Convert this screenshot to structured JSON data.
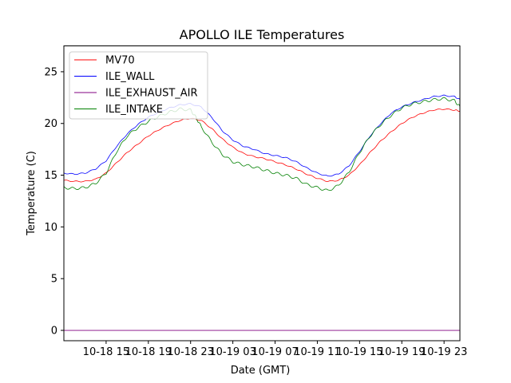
{
  "chart_data": {
    "type": "line",
    "title": "APOLLO ILE Temperatures",
    "xlabel": "Date (GMT)",
    "ylabel": "Temperature (C)",
    "x_unit": "hours since 10-18 11:00 GMT",
    "xlim": [
      0,
      37.5
    ],
    "ylim": [
      -1.0,
      27.5
    ],
    "x_ticks": [
      {
        "value": 4,
        "label": "10-18 15"
      },
      {
        "value": 8,
        "label": "10-18 19"
      },
      {
        "value": 12,
        "label": "10-18 23"
      },
      {
        "value": 16,
        "label": "10-19 03"
      },
      {
        "value": 20,
        "label": "10-19 07"
      },
      {
        "value": 24,
        "label": "10-19 11"
      },
      {
        "value": 28,
        "label": "10-19 15"
      },
      {
        "value": 32,
        "label": "10-19 19"
      },
      {
        "value": 36,
        "label": "10-19 23"
      }
    ],
    "y_ticks": [
      {
        "value": 0,
        "label": "0"
      },
      {
        "value": 5,
        "label": "5"
      },
      {
        "value": 10,
        "label": "10"
      },
      {
        "value": 15,
        "label": "15"
      },
      {
        "value": 20,
        "label": "20"
      },
      {
        "value": 25,
        "label": "25"
      }
    ],
    "legend_position": "top-left",
    "series": [
      {
        "name": "MV70",
        "color": "#ff0000",
        "points": [
          [
            0,
            14.5
          ],
          [
            1,
            14.4
          ],
          [
            2,
            14.4
          ],
          [
            3,
            14.6
          ],
          [
            4,
            15.2
          ],
          [
            5,
            16.2
          ],
          [
            6,
            17.2
          ],
          [
            7,
            18.0
          ],
          [
            8,
            18.8
          ],
          [
            9,
            19.4
          ],
          [
            10,
            19.9
          ],
          [
            11,
            20.3
          ],
          [
            12,
            20.5
          ],
          [
            13,
            20.3
          ],
          [
            14,
            19.5
          ],
          [
            15,
            18.5
          ],
          [
            16,
            17.7
          ],
          [
            17,
            17.1
          ],
          [
            18,
            16.8
          ],
          [
            19,
            16.6
          ],
          [
            20,
            16.3
          ],
          [
            21,
            16.0
          ],
          [
            22,
            15.6
          ],
          [
            23,
            15.1
          ],
          [
            24,
            14.7
          ],
          [
            25,
            14.4
          ],
          [
            26,
            14.5
          ],
          [
            27,
            15.0
          ],
          [
            28,
            16.0
          ],
          [
            29,
            17.2
          ],
          [
            30,
            18.3
          ],
          [
            31,
            19.2
          ],
          [
            32,
            20.0
          ],
          [
            33,
            20.6
          ],
          [
            34,
            21.0
          ],
          [
            35,
            21.3
          ],
          [
            36,
            21.4
          ],
          [
            37,
            21.3
          ],
          [
            37.5,
            21.2
          ]
        ]
      },
      {
        "name": "ILE_WALL",
        "color": "#0000ff",
        "points": [
          [
            0,
            15.2
          ],
          [
            1,
            15.1
          ],
          [
            2,
            15.2
          ],
          [
            3,
            15.6
          ],
          [
            4,
            16.4
          ],
          [
            5,
            17.8
          ],
          [
            6,
            19.0
          ],
          [
            7,
            19.9
          ],
          [
            8,
            20.6
          ],
          [
            9,
            21.1
          ],
          [
            10,
            21.5
          ],
          [
            11,
            21.8
          ],
          [
            12,
            21.9
          ],
          [
            13,
            21.6
          ],
          [
            14,
            20.6
          ],
          [
            15,
            19.3
          ],
          [
            16,
            18.4
          ],
          [
            17,
            17.8
          ],
          [
            18,
            17.5
          ],
          [
            19,
            17.1
          ],
          [
            20,
            16.9
          ],
          [
            21,
            16.7
          ],
          [
            22,
            16.3
          ],
          [
            23,
            15.7
          ],
          [
            24,
            15.2
          ],
          [
            25,
            14.9
          ],
          [
            26,
            15.1
          ],
          [
            27,
            15.9
          ],
          [
            28,
            17.3
          ],
          [
            29,
            18.8
          ],
          [
            30,
            20.0
          ],
          [
            31,
            21.0
          ],
          [
            32,
            21.6
          ],
          [
            33,
            22.0
          ],
          [
            34,
            22.3
          ],
          [
            35,
            22.6
          ],
          [
            36,
            22.7
          ],
          [
            37,
            22.6
          ],
          [
            37.5,
            22.3
          ]
        ]
      },
      {
        "name": "ILE_EXHAUST_AIR",
        "color": "#800080",
        "points": [
          [
            0,
            0.0
          ],
          [
            37.5,
            0.0
          ]
        ]
      },
      {
        "name": "ILE_INTAKE",
        "color": "#008000",
        "points": [
          [
            0,
            13.8
          ],
          [
            1,
            13.7
          ],
          [
            2,
            13.8
          ],
          [
            3,
            14.2
          ],
          [
            4,
            15.2
          ],
          [
            5,
            17.3
          ],
          [
            6,
            18.8
          ],
          [
            7,
            19.6
          ],
          [
            8,
            20.2
          ],
          [
            9,
            20.7
          ],
          [
            10,
            21.1
          ],
          [
            11,
            21.4
          ],
          [
            12,
            21.3
          ],
          [
            12.5,
            20.6
          ],
          [
            13,
            19.7
          ],
          [
            14,
            18.2
          ],
          [
            15,
            17.0
          ],
          [
            16,
            16.3
          ],
          [
            17,
            16.0
          ],
          [
            18,
            15.8
          ],
          [
            19,
            15.5
          ],
          [
            20,
            15.2
          ],
          [
            21,
            15.0
          ],
          [
            22,
            14.7
          ],
          [
            23,
            14.1
          ],
          [
            24,
            13.8
          ],
          [
            25,
            13.5
          ],
          [
            26,
            14.0
          ],
          [
            27,
            15.3
          ],
          [
            28,
            17.2
          ],
          [
            29,
            18.8
          ],
          [
            30,
            19.9
          ],
          [
            31,
            20.8
          ],
          [
            32,
            21.5
          ],
          [
            33,
            21.9
          ],
          [
            34,
            22.1
          ],
          [
            35,
            22.3
          ],
          [
            36,
            22.4
          ],
          [
            37,
            22.2
          ],
          [
            37.5,
            21.6
          ]
        ]
      }
    ]
  }
}
